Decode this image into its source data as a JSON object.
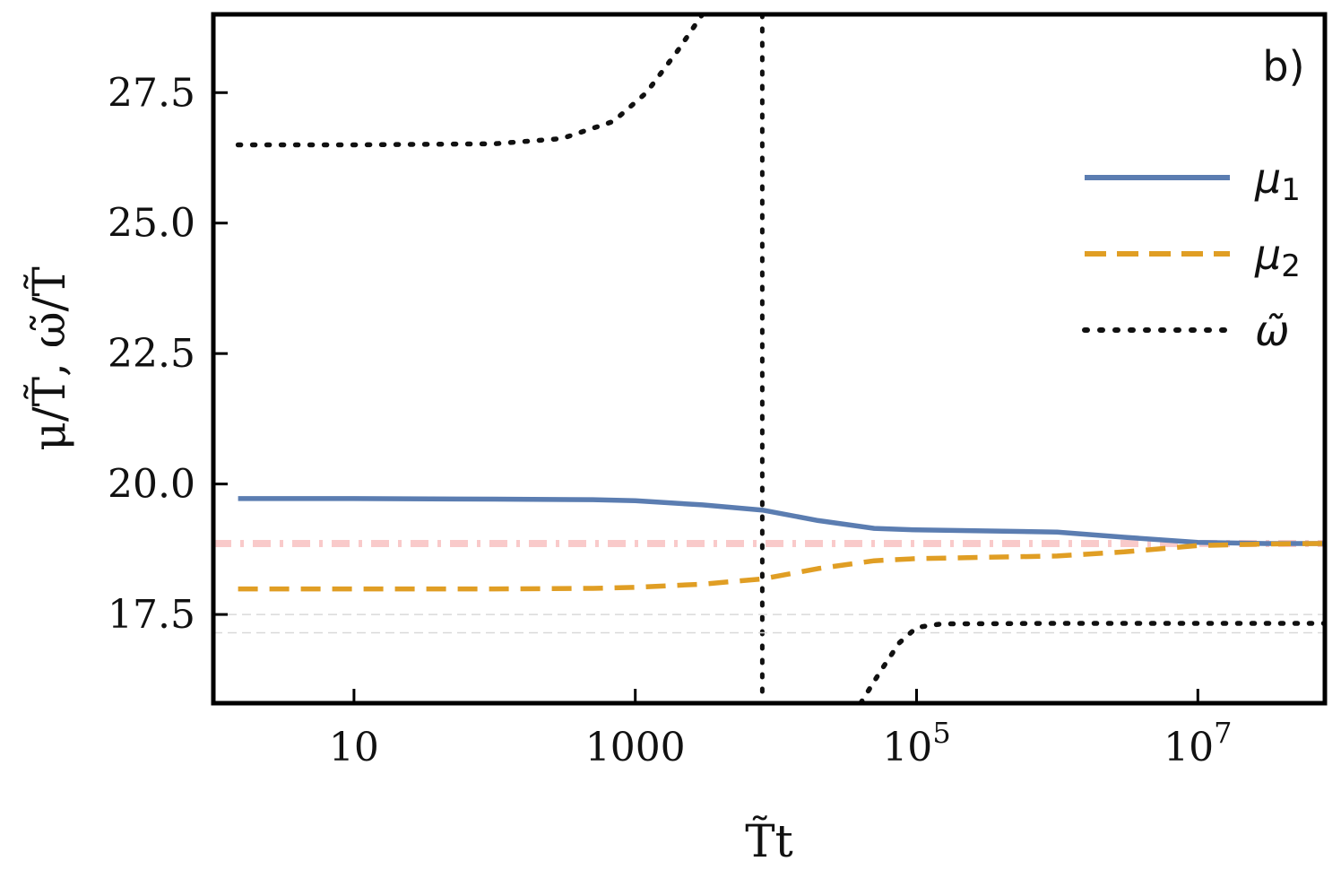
{
  "chart_data": {
    "type": "line",
    "panel_label": "b)",
    "xlabel": "T̃t",
    "ylabel": "μ/T̃, ω̃/T̃",
    "x_scale": "log",
    "xlim": [
      1,
      80000000
    ],
    "ylim": [
      15.8,
      29.0
    ],
    "x_ticks": [
      {
        "value": 10,
        "label": "10",
        "base": "",
        "exp": ""
      },
      {
        "value": 1000,
        "label": "1000",
        "base": "",
        "exp": ""
      },
      {
        "value": 100000,
        "label": "",
        "base": "10",
        "exp": "5"
      },
      {
        "value": 10000000,
        "label": "",
        "base": "10",
        "exp": "7"
      }
    ],
    "y_ticks": [
      {
        "value": 17.5,
        "label": "17.5"
      },
      {
        "value": 20.0,
        "label": "20.0"
      },
      {
        "value": 22.5,
        "label": "22.5"
      },
      {
        "value": 25.0,
        "label": "25.0"
      },
      {
        "value": 27.5,
        "label": "27.5"
      }
    ],
    "legend_position": "top-right",
    "series": [
      {
        "name": "μ",
        "subscript": "1",
        "style": "solid",
        "color": "#5b7db1",
        "points": [
          [
            1.5,
            19.72
          ],
          [
            10,
            19.72
          ],
          [
            100,
            19.71
          ],
          [
            500,
            19.7
          ],
          [
            1000,
            19.68
          ],
          [
            3000,
            19.6
          ],
          [
            8000,
            19.5
          ],
          [
            20000,
            19.3
          ],
          [
            50000,
            19.15
          ],
          [
            100000,
            19.12
          ],
          [
            1000000,
            19.08
          ],
          [
            3000000,
            18.98
          ],
          [
            10000000,
            18.88
          ],
          [
            30000000,
            18.86
          ],
          [
            80000000,
            18.86
          ]
        ]
      },
      {
        "name": "μ",
        "subscript": "2",
        "style": "dashed",
        "color": "#e09e24",
        "points": [
          [
            1.5,
            17.99
          ],
          [
            10,
            17.99
          ],
          [
            100,
            17.99
          ],
          [
            500,
            18.0
          ],
          [
            1000,
            18.02
          ],
          [
            3000,
            18.08
          ],
          [
            8000,
            18.18
          ],
          [
            20000,
            18.38
          ],
          [
            50000,
            18.53
          ],
          [
            100000,
            18.57
          ],
          [
            1000000,
            18.62
          ],
          [
            3000000,
            18.7
          ],
          [
            10000000,
            18.82
          ],
          [
            30000000,
            18.85
          ],
          [
            80000000,
            18.86
          ]
        ]
      },
      {
        "name": "ω̃",
        "subscript": "",
        "style": "dotted",
        "color": "#111111",
        "segments": [
          [
            [
              1.5,
              26.5
            ],
            [
              10,
              26.5
            ],
            [
              100,
              26.52
            ],
            [
              300,
              26.62
            ],
            [
              700,
              26.95
            ],
            [
              1200,
              27.5
            ],
            [
              2000,
              28.3
            ],
            [
              3000,
              29.0
            ]
          ],
          [
            [
              40000,
              15.8
            ],
            [
              55000,
              16.4
            ],
            [
              75000,
              16.95
            ],
            [
              100000,
              17.25
            ],
            [
              150000,
              17.32
            ],
            [
              1000000,
              17.33
            ],
            [
              80000000,
              17.33
            ]
          ]
        ]
      }
    ],
    "reference_lines": [
      {
        "orientation": "vertical",
        "x": 8000,
        "style": "dotted",
        "color": "#111111"
      },
      {
        "orientation": "horizontal",
        "y": 18.86,
        "style": "dashdot",
        "color": "#f9caca"
      },
      {
        "orientation": "horizontal",
        "y": 17.5,
        "style": "dashed",
        "color": "#d9d9d9"
      },
      {
        "orientation": "horizontal",
        "y": 17.15,
        "style": "dashed",
        "color": "#d9d9d9"
      }
    ]
  }
}
